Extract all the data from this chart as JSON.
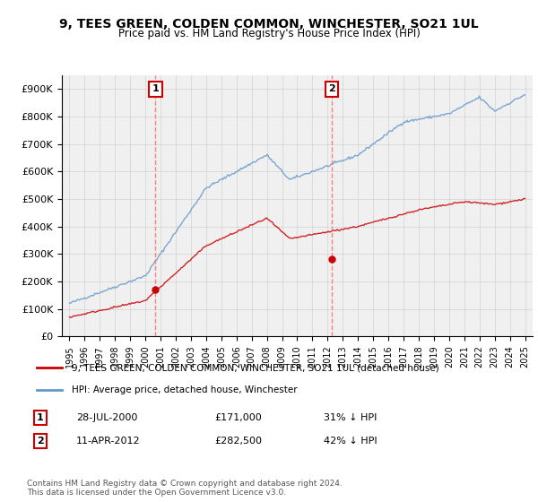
{
  "title": "9, TEES GREEN, COLDEN COMMON, WINCHESTER, SO21 1UL",
  "subtitle": "Price paid vs. HM Land Registry's House Price Index (HPI)",
  "ylabel_ticks": [
    "£0",
    "£100K",
    "£200K",
    "£300K",
    "£400K",
    "£500K",
    "£600K",
    "£700K",
    "£800K",
    "£900K"
  ],
  "ylim": [
    0,
    950000
  ],
  "yticks": [
    0,
    100000,
    200000,
    300000,
    400000,
    500000,
    600000,
    700000,
    800000,
    900000
  ],
  "legend_entry1": "9, TEES GREEN, COLDEN COMMON, WINCHESTER, SO21 1UL (detached house)",
  "legend_entry2": "HPI: Average price, detached house, Winchester",
  "marker1_date": "28-JUL-2000",
  "marker1_price": "£171,000",
  "marker1_hpi": "31% ↓ HPI",
  "marker2_date": "11-APR-2012",
  "marker2_price": "£282,500",
  "marker2_hpi": "42% ↓ HPI",
  "footnote": "Contains HM Land Registry data © Crown copyright and database right 2024.\nThis data is licensed under the Open Government Licence v3.0.",
  "red_color": "#cc0000",
  "blue_color": "#6699cc",
  "marker_box_color": "#cc0000",
  "vline_color": "#ff6666",
  "background_plot": "#f0f0f0",
  "background_fig": "#ffffff"
}
